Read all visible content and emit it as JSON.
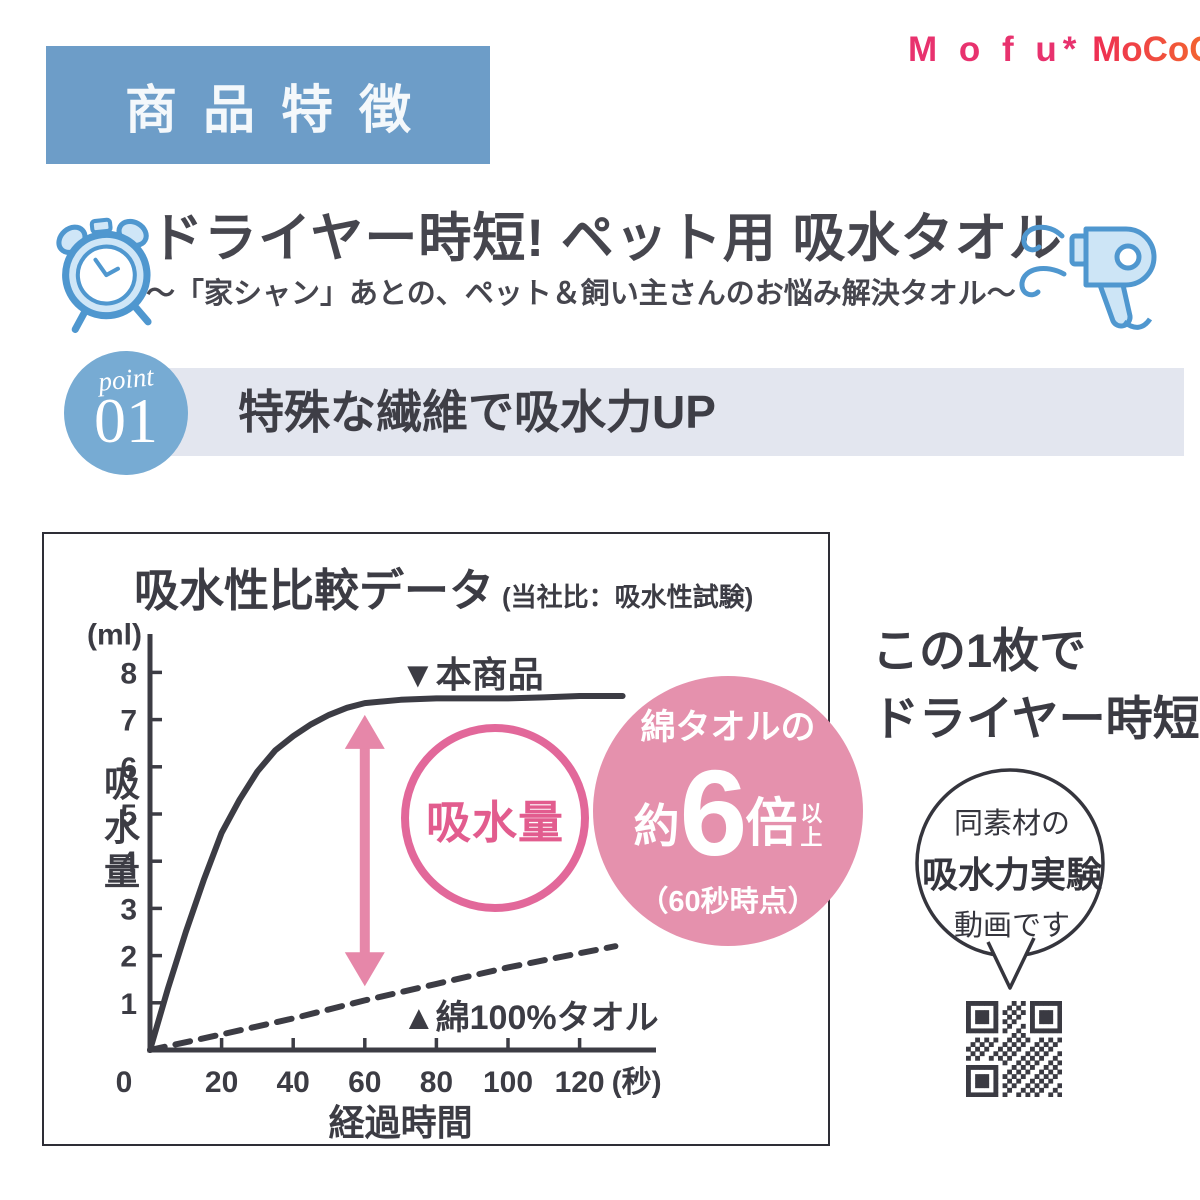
{
  "brand": {
    "part1": "M o f u*",
    "part2": "MoCoCo*"
  },
  "header": {
    "title": "商品特徴"
  },
  "hero": {
    "title": "ドライヤー時短! ペット用 吸水タオル",
    "subtitle": "〜「家シャン」あとの、ペット＆飼い主さんのお悩み解決タオル〜"
  },
  "point": {
    "label": "point",
    "number": "01",
    "banner": "特殊な繊維で吸水力UP"
  },
  "chart_panel": {
    "title": "吸水性比較データ",
    "title_note": "(当社比：吸水性試験)"
  },
  "chart_data": {
    "type": "line",
    "title": "吸水性比較データ",
    "subtitle": "当社比：吸水性試験",
    "xlabel": "経過時間",
    "x_unit": "(秒)",
    "ylabel": "吸水量",
    "y_unit": "(ml)",
    "xlim": [
      0,
      132
    ],
    "ylim": [
      0,
      8.6
    ],
    "x_ticks": [
      0,
      20,
      40,
      60,
      80,
      100,
      120
    ],
    "y_ticks": [
      1,
      2,
      3,
      4,
      5,
      6,
      7,
      8
    ],
    "grid": false,
    "legend_position": "inline-labels",
    "series": [
      {
        "name": "本商品",
        "marker": "▼",
        "style": "solid",
        "x": [
          0,
          5,
          10,
          15,
          20,
          25,
          30,
          35,
          40,
          45,
          50,
          55,
          60,
          70,
          80,
          90,
          100,
          110,
          120,
          130,
          132
        ],
        "values": [
          0,
          1.3,
          2.5,
          3.6,
          4.6,
          5.3,
          5.9,
          6.35,
          6.65,
          6.9,
          7.1,
          7.25,
          7.35,
          7.42,
          7.45,
          7.45,
          7.45,
          7.47,
          7.5,
          7.5,
          7.5
        ]
      },
      {
        "name": "綿100%タオル",
        "marker": "▲",
        "style": "dashed",
        "x": [
          0,
          20,
          40,
          60,
          80,
          100,
          120,
          130
        ],
        "values": [
          0,
          0.33,
          0.67,
          1.05,
          1.4,
          1.75,
          2.05,
          2.2
        ]
      }
    ],
    "annotation_arrow": {
      "x": 60,
      "from": 1.35,
      "to": 7.1,
      "label": "吸水量"
    }
  },
  "highlight": {
    "circle_label": "吸水量",
    "badge_line1": "綿タオルの",
    "badge_prefix": "約",
    "badge_number": "6",
    "badge_suffix": "倍",
    "badge_small_1": "以",
    "badge_small_2": "上",
    "badge_note": "（60秒時点）"
  },
  "aside": {
    "line1": "この1枚で",
    "line2": "ドライヤー時短！",
    "bubble_line1": "同素材の",
    "bubble_line2": "吸水力実験",
    "bubble_line3": "動画です"
  },
  "icons": {
    "clock": "alarm-clock-icon",
    "dryer": "hair-dryer-icon",
    "qr": "qr-code"
  },
  "colors": {
    "header_blue": "#6d9dc8",
    "point_blue": "#77abd3",
    "banner_gray": "#e3e6ef",
    "brand_pink": "#e8326e",
    "brand_orange": "#f1512e",
    "badge_pink": "#e591ad",
    "deep_pink": "#e25c8e",
    "arrow_pink": "#e687a9",
    "icon_blue": "#4f97cf",
    "icon_blue_fill": "#cfe6f7",
    "ink": "#3c3c44"
  }
}
